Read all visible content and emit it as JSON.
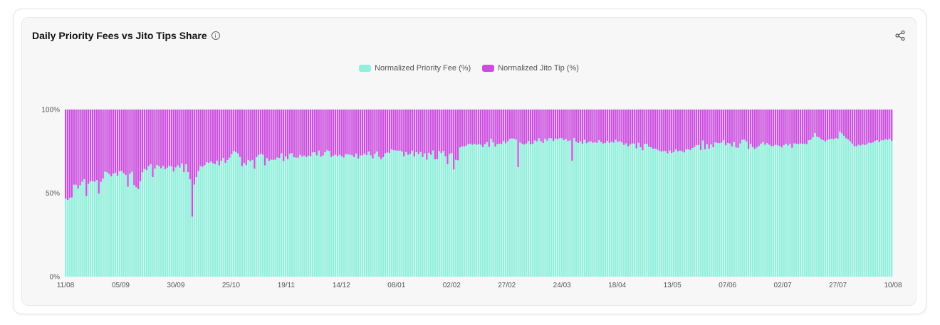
{
  "chart_data": {
    "type": "bar",
    "stacked": true,
    "normalized": true,
    "title": "Daily Priority Fees vs Jito Tips Share",
    "x_tick_labels": [
      "11/08",
      "05/09",
      "30/09",
      "25/10",
      "19/11",
      "14/12",
      "08/01",
      "02/02",
      "27/02",
      "24/03",
      "18/04",
      "13/05",
      "07/06",
      "02/07",
      "27/07",
      "10/08"
    ],
    "y_tick_labels": [
      "0%",
      "50%",
      "100%"
    ],
    "ylim": [
      0,
      100
    ],
    "grid": false,
    "legend_position": "top-center",
    "x_start": "2023-08-11",
    "x_end": "2024-08-10",
    "series": [
      {
        "name": "Normalized Priority Fee (%)",
        "color": "#8ff0dc"
      },
      {
        "name": "Normalized Jito Tip (%)",
        "color": "#cc4ee0"
      }
    ],
    "priority_fee_share_by_day": [
      46.5,
      45.9,
      47.2,
      47.4,
      55.0,
      55.0,
      52.7,
      54.7,
      56.8,
      58.3,
      48.3,
      55.6,
      57.0,
      57.2,
      56.8,
      57.8,
      49.7,
      56.7,
      58.6,
      62.8,
      62.4,
      61.4,
      60.0,
      61.7,
      62.2,
      60.4,
      63.1,
      63.2,
      61.9,
      60.8,
      53.8,
      61.6,
      62.8,
      54.8,
      53.5,
      52.4,
      57.1,
      62.4,
      64.5,
      63.8,
      66.1,
      67.3,
      59.6,
      64.7,
      66.7,
      66.1,
      64.8,
      66.3,
      64.3,
      65.2,
      66.2,
      65.9,
      62.9,
      65.4,
      66.6,
      65.3,
      67.8,
      62.5,
      67.2,
      62.5,
      58.2,
      35.9,
      55.1,
      59.5,
      63.2,
      66.2,
      65.7,
      66.7,
      68.4,
      68.1,
      68.9,
      67.9,
      67.3,
      69.4,
      66.6,
      69.3,
      71.0,
      68.1,
      69.8,
      71.2,
      73.3,
      75.2,
      74.6,
      73.8,
      71.6,
      66.2,
      68.1,
      66.8,
      69.8,
      69.1,
      69.9,
      64.6,
      71.5,
      72.8,
      73.6,
      73.0,
      66.6,
      71.0,
      69.3,
      70.0,
      69.9,
      70.0,
      71.3,
      71.0,
      73.8,
      69.1,
      71.9,
      70.3,
      73.5,
      73.9,
      71.5,
      71.2,
      71.2,
      72.9,
      71.8,
      72.5,
      71.5,
      72.4,
      72.0,
      74.3,
      74.4,
      72.6,
      75.4,
      71.8,
      72.5,
      74.4,
      75.6,
      75.2,
      71.6,
      72.4,
      73.0,
      72.1,
      72.9,
      72.0,
      71.3,
      73.3,
      73.1,
      73.0,
      72.6,
      71.5,
      73.7,
      70.7,
      72.5,
      72.6,
      73.6,
      72.7,
      74.9,
      72.6,
      70.8,
      73.5,
      74.9,
      71.7,
      70.3,
      71.5,
      73.8,
      74.3,
      74.0,
      76.2,
      75.7,
      75.5,
      75.4,
      75.4,
      74.8,
      72.0,
      74.6,
      72.9,
      73.5,
      75.4,
      71.9,
      74.5,
      73.4,
      74.6,
      71.6,
      73.8,
      70.0,
      74.1,
      72.9,
      75.5,
      70.2,
      70.3,
      75.1,
      74.0,
      75.2,
      72.0,
      67.3,
      73.4,
      74.0,
      64.1,
      69.9,
      69.6,
      77.3,
      78.0,
      77.8,
      78.4,
      79.2,
      79.6,
      78.9,
      79.5,
      78.9,
      79.2,
      78.9,
      77.5,
      79.3,
      80.5,
      77.6,
      82.5,
      80.3,
      77.8,
      79.3,
      79.5,
      79.4,
      81.2,
      79.8,
      81.0,
      82.4,
      82.7,
      82.6,
      82.0,
      65.5,
      80.3,
      79.4,
      79.0,
      79.7,
      81.2,
      79.2,
      79.5,
      81.5,
      81.0,
      82.8,
      81.0,
      80.0,
      82.5,
      81.4,
      82.9,
      82.8,
      81.2,
      82.6,
      82.1,
      82.9,
      82.9,
      81.7,
      82.4,
      81.1,
      81.5,
      69.4,
      83.0,
      80.7,
      80.0,
      81.0,
      79.5,
      81.9,
      79.9,
      80.6,
      81.0,
      80.1,
      80.3,
      80.1,
      81.6,
      80.5,
      79.7,
      80.0,
      81.3,
      80.0,
      80.7,
      80.2,
      81.9,
      80.6,
      81.0,
      80.3,
      78.8,
      79.8,
      77.9,
      79.0,
      79.7,
      79.6,
      76.8,
      80.1,
      77.4,
      75.6,
      79.5,
      79.4,
      77.7,
      77.4,
      76.5,
      76.6,
      76.1,
      75.4,
      74.8,
      75.1,
      75.2,
      73.7,
      75.4,
      74.0,
      74.6,
      76.1,
      75.0,
      75.4,
      75.0,
      74.3,
      76.1,
      76.2,
      75.7,
      77.0,
      77.6,
      78.7,
      78.8,
      75.8,
      81.5,
      76.1,
      79.3,
      76.6,
      79.1,
      77.4,
      80.4,
      80.0,
      79.9,
      80.2,
      81.6,
      78.6,
      80.0,
      79.7,
      77.9,
      80.6,
      77.3,
      77.1,
      79.7,
      81.9,
      81.9,
      80.9,
      76.3,
      79.4,
      77.5,
      76.4,
      77.3,
      78.3,
      79.5,
      80.4,
      78.9,
      79.9,
      78.9,
      78.1,
      78.1,
      78.9,
      78.6,
      78.2,
      77.3,
      78.7,
      79.5,
      78.5,
      79.4,
      77.1,
      79.8,
      79.5,
      79.2,
      79.7,
      79.4,
      79.6,
      79.2,
      81.6,
      81.9,
      83.4,
      85.9,
      83.7,
      83.3,
      82.2,
      81.7,
      80.8,
      81.7,
      82.1,
      82.5,
      82.2,
      82.9,
      82.6,
      86.7,
      85.7,
      84.3,
      82.8,
      82.1,
      80.9,
      79.6,
      78.1,
      78.0,
      78.9,
      78.5,
      79.1,
      78.8,
      79.2,
      80.2,
      79.9,
      80.3,
      81.2,
      81.7,
      80.6,
      81.6,
      81.6,
      82.3,
      81.8,
      82.5,
      81.3
    ]
  },
  "legend": [
    {
      "label": "Normalized Priority Fee (%)",
      "color": "#8ff0dc"
    },
    {
      "label": "Normalized Jito Tip (%)",
      "color": "#cc4ee0"
    }
  ],
  "icons": {
    "info": "info-icon",
    "share": "share-icon"
  }
}
